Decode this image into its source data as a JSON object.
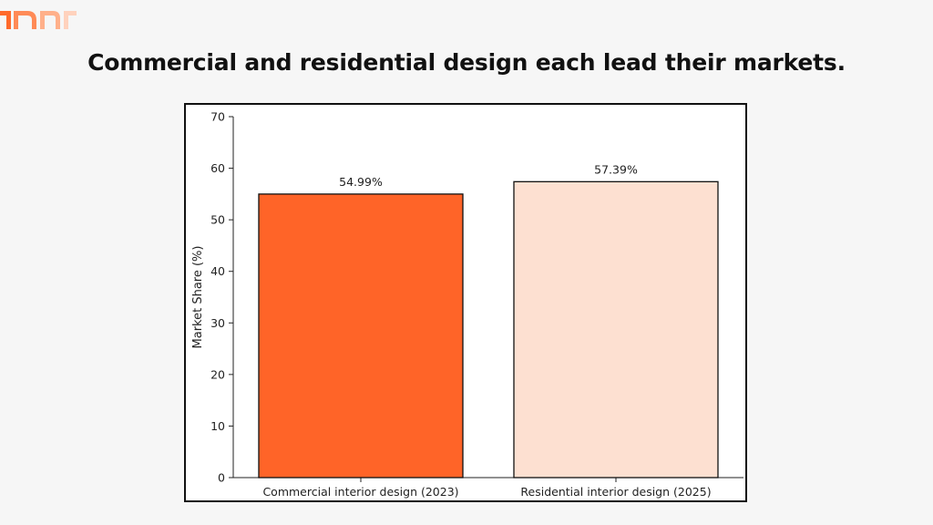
{
  "logo": {
    "icon": "brand-mark-icon",
    "colors": [
      "#ff6a2b",
      "#ff8b57",
      "#ffb08a",
      "#ffd2bd"
    ]
  },
  "headline": "Commercial and residential design each lead their markets.",
  "chart_data": {
    "type": "bar",
    "title": "",
    "xlabel": "",
    "ylabel": "Market Share (%)",
    "ylim": [
      0,
      70
    ],
    "yticks": [
      0,
      10,
      20,
      30,
      40,
      50,
      60,
      70
    ],
    "categories": [
      "Commercial interior design (2023)",
      "Residential interior design (2025)"
    ],
    "values": [
      54.99,
      57.39
    ],
    "data_labels": [
      "54.99%",
      "57.39%"
    ],
    "colors": [
      "#ff6428",
      "#fde0d1"
    ],
    "edge_color": "#111111",
    "grid": false,
    "legend": "none"
  }
}
